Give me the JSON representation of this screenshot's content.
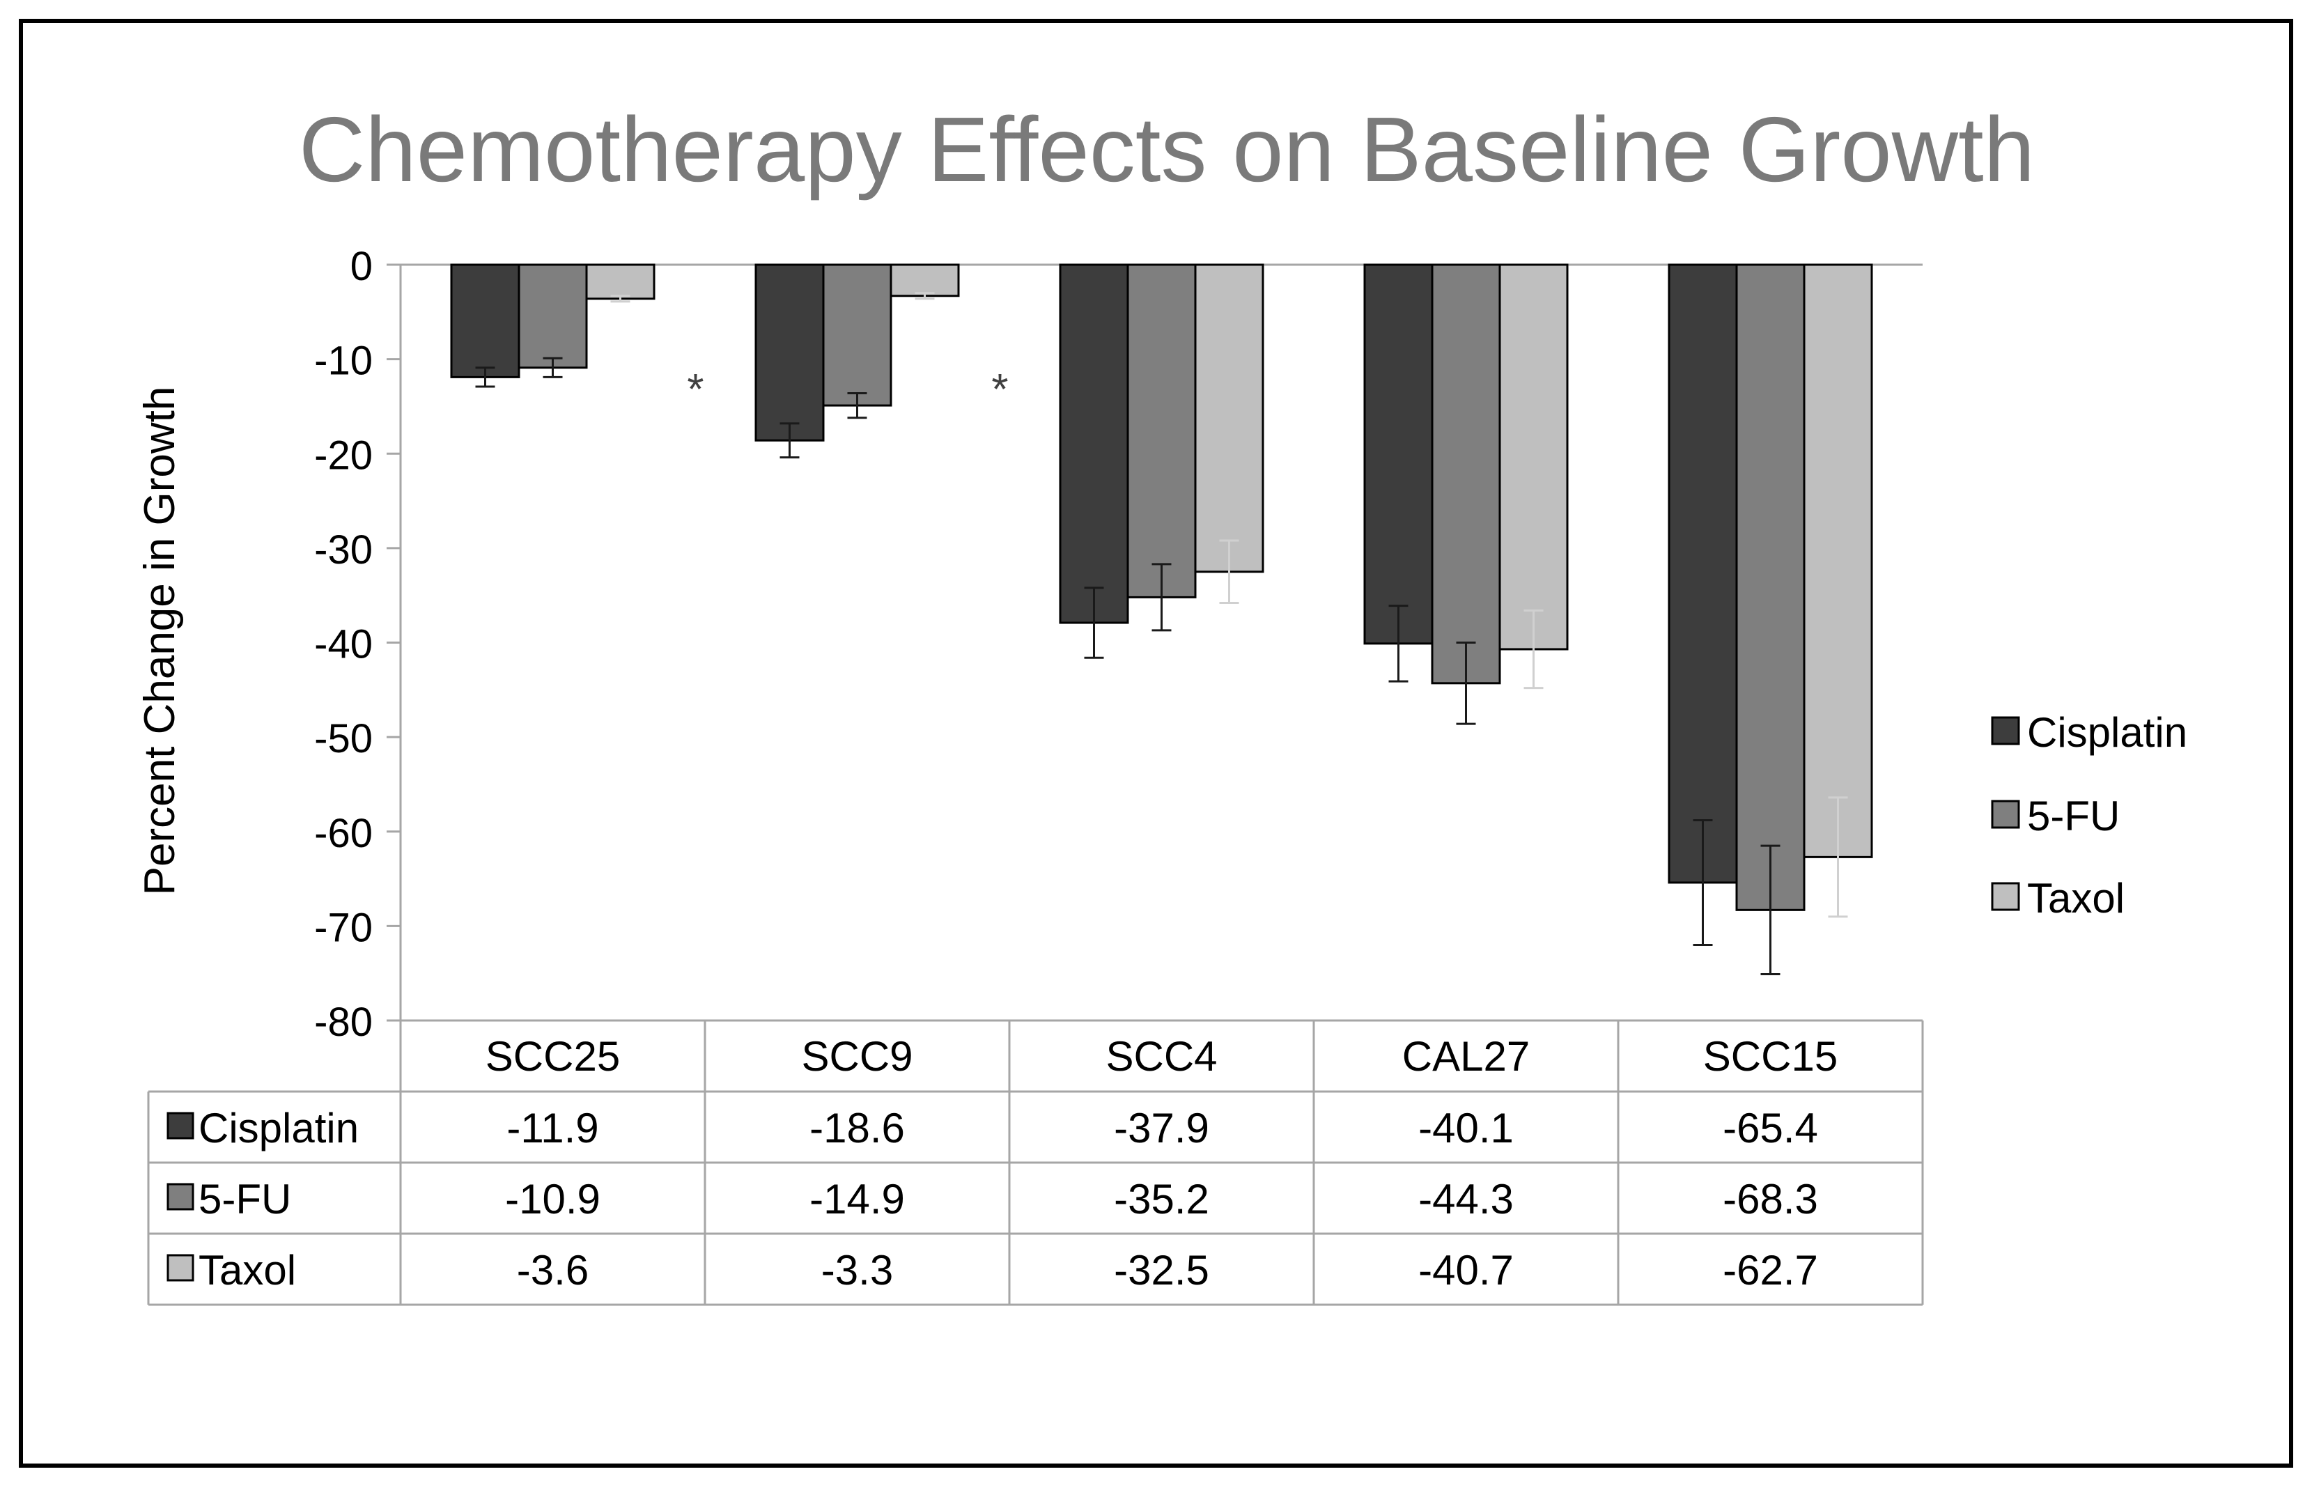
{
  "chart_data": {
    "type": "bar",
    "title": "Chemotherapy Effects on Baseline Growth",
    "xlabel": "",
    "ylabel": "Percent Change in Growth",
    "ylim": [
      -80,
      0
    ],
    "yticks": [
      "0",
      "-10",
      "-20",
      "-30",
      "-40",
      "-50",
      "-60",
      "-70",
      "-80"
    ],
    "grid": false,
    "legend_position": "right",
    "categories": [
      "SCC25",
      "SCC9",
      "SCC4",
      "CAL27",
      "SCC15"
    ],
    "series": [
      {
        "name": "Cisplatin",
        "color": "#3d3d3d",
        "values": [
          -11.9,
          -18.6,
          -37.9,
          -40.1,
          -65.4
        ],
        "error": [
          1.0,
          1.8,
          3.7,
          4.0,
          6.6
        ],
        "value_labels": [
          "-11.9",
          "-18.6",
          "-37.9",
          "-40.1",
          "-65.4"
        ]
      },
      {
        "name": "5-FU",
        "color": "#7f7f7f",
        "values": [
          -10.9,
          -14.9,
          -35.2,
          -44.3,
          -68.3
        ],
        "error": [
          1.0,
          1.3,
          3.5,
          4.3,
          6.8
        ],
        "value_labels": [
          "-10.9",
          "-14.9",
          "-35.2",
          "-44.3",
          "-68.3"
        ]
      },
      {
        "name": "Taxol",
        "color": "#bfbfbf",
        "values": [
          -3.6,
          -3.3,
          -32.5,
          -40.7,
          -62.7
        ],
        "error": [
          0.3,
          0.3,
          3.3,
          4.1,
          6.3
        ],
        "value_labels": [
          "-3.6",
          "-3.3",
          "-32.5",
          "-40.7",
          "-62.7"
        ]
      }
    ],
    "annotations": [
      {
        "text": "*",
        "category_index": 0
      },
      {
        "text": "*",
        "category_index": 1
      }
    ]
  }
}
